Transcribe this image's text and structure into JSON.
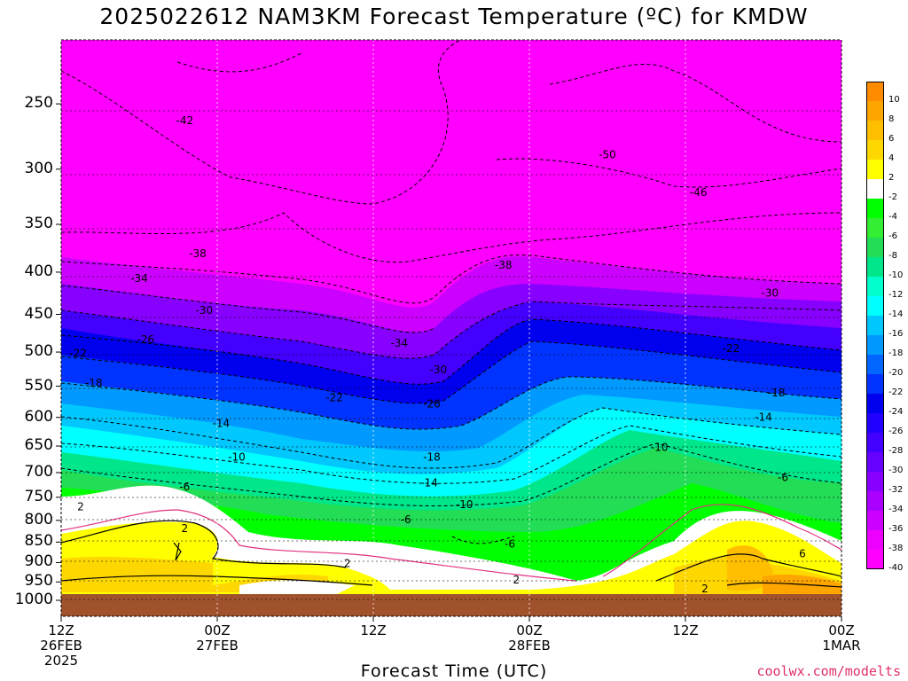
{
  "title": "2025022612 NAM3KM Forecast Temperature (ºC) for KMDW",
  "x_axis": {
    "title": "Forecast Time (UTC)",
    "ticks": [
      {
        "l1": "12Z",
        "l2": "26FEB",
        "l3": "2025"
      },
      {
        "l1": "00Z",
        "l2": "27FEB",
        "l3": ""
      },
      {
        "l1": "12Z",
        "l2": "",
        "l3": ""
      },
      {
        "l1": "00Z",
        "l2": "28FEB",
        "l3": ""
      },
      {
        "l1": "12Z",
        "l2": "",
        "l3": ""
      },
      {
        "l1": "00Z",
        "l2": "1MAR",
        "l3": ""
      }
    ]
  },
  "credit": "coolwx.com/modelts",
  "colorbar": {
    "labels": [
      "10",
      "8",
      "6",
      "4",
      "2",
      "-2",
      "-4",
      "-6",
      "-8",
      "-10",
      "-12",
      "-14",
      "-16",
      "-18",
      "-20",
      "-22",
      "-24",
      "-26",
      "-28",
      "-30",
      "-32",
      "-34",
      "-36",
      "-38",
      "-40"
    ],
    "colors": [
      "#ff8c00",
      "#ffa500",
      "#ffbf00",
      "#ffd700",
      "#ffff00",
      "#ffffff",
      "#00ff00",
      "#33ee33",
      "#22dd55",
      "#00e68a",
      "#00ffcc",
      "#00ffff",
      "#00c8ff",
      "#0099ff",
      "#0066ff",
      "#0033ff",
      "#0000ee",
      "#2200ff",
      "#4400ff",
      "#6600ff",
      "#8800ff",
      "#aa00ff",
      "#cc00ff",
      "#ee00ff",
      "#ff00ff"
    ]
  },
  "chart_data": {
    "type": "heatmap",
    "title": "2025022612 NAM3KM Forecast Temperature (ºC) for KMDW",
    "xlabel": "Forecast Time (UTC)",
    "ylabel": "",
    "x_ticks": [
      "12Z 26FEB 2025",
      "00Z 27FEB",
      "12Z",
      "00Z 28FEB",
      "12Z",
      "00Z 1MAR"
    ],
    "x_hours": [
      0,
      12,
      24,
      36,
      48,
      60
    ],
    "y_ticks": [
      250,
      300,
      350,
      400,
      450,
      500,
      550,
      600,
      650,
      700,
      750,
      800,
      850,
      900,
      950,
      1000
    ],
    "ylim": [
      1000,
      200
    ],
    "y_log": true,
    "grid": true,
    "colorbar_range": [
      -40,
      10
    ],
    "contour_labels": [
      {
        "hour": 9.5,
        "p": 262,
        "t": -42
      },
      {
        "hour": 10.5,
        "p": 380,
        "t": -38
      },
      {
        "hour": 6,
        "p": 407,
        "t": -34
      },
      {
        "hour": 11,
        "p": 445,
        "t": -30
      },
      {
        "hour": 6.5,
        "p": 483,
        "t": -26
      },
      {
        "hour": 1.3,
        "p": 502,
        "t": -22
      },
      {
        "hour": 2.5,
        "p": 545,
        "t": -18
      },
      {
        "hour": 12.3,
        "p": 610,
        "t": -14
      },
      {
        "hour": 13.5,
        "p": 670,
        "t": -10
      },
      {
        "hour": 9.5,
        "p": 728,
        "t": -6
      },
      {
        "hour": 1.5,
        "p": 770,
        "t": 2
      },
      {
        "hour": 9.5,
        "p": 818,
        "t": 2
      },
      {
        "hour": 21,
        "p": 568,
        "t": -22
      },
      {
        "hour": 26,
        "p": 488,
        "t": -34
      },
      {
        "hour": 29,
        "p": 525,
        "t": -30
      },
      {
        "hour": 28.5,
        "p": 578,
        "t": -26
      },
      {
        "hour": 28.5,
        "p": 670,
        "t": -18
      },
      {
        "hour": 28.3,
        "p": 720,
        "t": -14
      },
      {
        "hour": 31,
        "p": 765,
        "t": -10
      },
      {
        "hour": 26.5,
        "p": 798,
        "t": -6
      },
      {
        "hour": 22,
        "p": 902,
        "t": 2
      },
      {
        "hour": 34,
        "p": 392,
        "t": -38
      },
      {
        "hour": 35,
        "p": 945,
        "t": 2
      },
      {
        "hour": 34.5,
        "p": 855,
        "t": -6
      },
      {
        "hour": 42,
        "p": 288,
        "t": -50
      },
      {
        "hour": 49,
        "p": 320,
        "t": -46
      },
      {
        "hour": 54.5,
        "p": 424,
        "t": -30
      },
      {
        "hour": 51.5,
        "p": 495,
        "t": -22
      },
      {
        "hour": 55,
        "p": 560,
        "t": -18
      },
      {
        "hour": 54,
        "p": 600,
        "t": -14
      },
      {
        "hour": 46,
        "p": 652,
        "t": -10
      },
      {
        "hour": 55.5,
        "p": 710,
        "t": -6
      },
      {
        "hour": 57,
        "p": 878,
        "t": 6
      },
      {
        "hour": 49.5,
        "p": 968,
        "t": 2
      }
    ]
  }
}
